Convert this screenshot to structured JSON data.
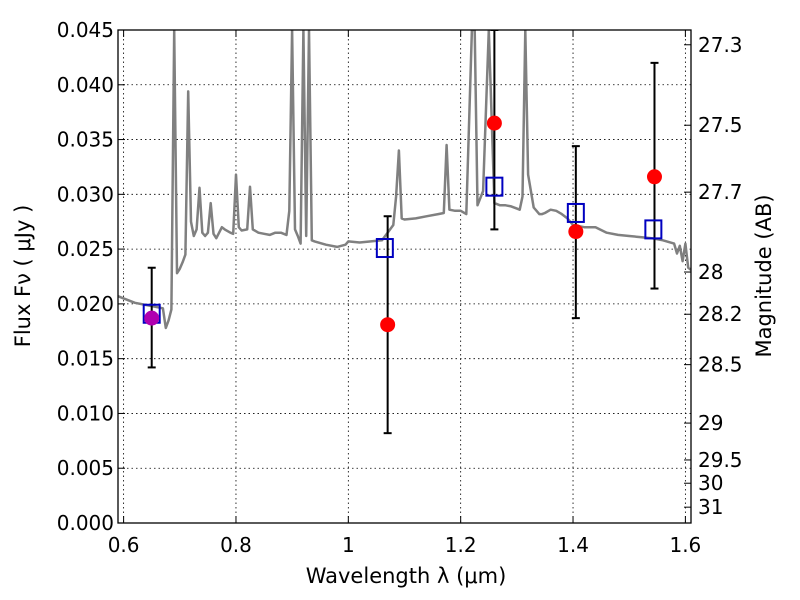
{
  "chart_data": {
    "type": "scatter",
    "xlabel": "Wavelength  λ (μm)",
    "ylabel": "Flux  Fν  ( μJy )",
    "y2label": "Magnitude (AB)",
    "xlim": [
      0.59,
      1.61
    ],
    "ylim": [
      0.0,
      0.045
    ],
    "grid": true,
    "x_ticks": [
      0.6,
      0.8,
      1.0,
      1.2,
      1.4,
      1.6
    ],
    "x_tick_labels": [
      "0.6",
      "0.8",
      "1",
      "1.2",
      "1.4",
      "1.6"
    ],
    "y_ticks": [
      0.0,
      0.005,
      0.01,
      0.015,
      0.02,
      0.025,
      0.03,
      0.035,
      0.04,
      0.045
    ],
    "y_tick_labels": [
      "0.000",
      "0.005",
      "0.010",
      "0.015",
      "0.020",
      "0.025",
      "0.030",
      "0.035",
      "0.040",
      "0.045"
    ],
    "y2_ticks": [
      27.3,
      27.5,
      27.7,
      28.0,
      28.2,
      28.5,
      29.0,
      29.5,
      30.0,
      31.0
    ],
    "y2_tick_labels": [
      "27.3",
      "27.5",
      "27.7",
      "28",
      "28.2",
      "28.5",
      "29",
      "29.5",
      "30",
      "31"
    ],
    "series": [
      {
        "kind": "observed",
        "marker": "circle",
        "color": "#ff0000",
        "points": [
          {
            "x": 0.65,
            "y": 0.0187,
            "err_low": 0.0142,
            "err_high": 0.0233
          },
          {
            "x": 1.07,
            "y": 0.0181,
            "err_low": 0.0082,
            "err_high": 0.028
          },
          {
            "x": 1.26,
            "y": 0.0365,
            "err_low": 0.0268,
            "err_high": 0.045
          },
          {
            "x": 1.405,
            "y": 0.0266,
            "err_low": 0.0187,
            "err_high": 0.0344
          },
          {
            "x": 1.545,
            "y": 0.0316,
            "err_low": 0.0214,
            "err_high": 0.042
          }
        ]
      },
      {
        "kind": "model",
        "marker": "square-open",
        "color": "#0000c0",
        "points": [
          {
            "x": 0.65,
            "y": 0.0191
          },
          {
            "x": 1.065,
            "y": 0.0251
          },
          {
            "x": 1.26,
            "y": 0.0307
          },
          {
            "x": 1.405,
            "y": 0.0283
          },
          {
            "x": 1.543,
            "y": 0.0268
          }
        ]
      },
      {
        "kind": "spectrum",
        "color": "#808080",
        "x": [
          0.59,
          0.6,
          0.62,
          0.64,
          0.66,
          0.67,
          0.675,
          0.68,
          0.685,
          0.69,
          0.695,
          0.7,
          0.705,
          0.71,
          0.715,
          0.72,
          0.725,
          0.73,
          0.735,
          0.74,
          0.745,
          0.75,
          0.755,
          0.76,
          0.765,
          0.77,
          0.775,
          0.78,
          0.79,
          0.795,
          0.8,
          0.805,
          0.81,
          0.82,
          0.825,
          0.83,
          0.84,
          0.85,
          0.86,
          0.87,
          0.88,
          0.89,
          0.895,
          0.9,
          0.905,
          0.91,
          0.915,
          0.92,
          0.925,
          0.93,
          0.935,
          0.94,
          0.96,
          0.98,
          0.995,
          1.0,
          1.02,
          1.04,
          1.06,
          1.07,
          1.08,
          1.085,
          1.09,
          1.095,
          1.1,
          1.12,
          1.14,
          1.16,
          1.17,
          1.175,
          1.18,
          1.19,
          1.2,
          1.21,
          1.22,
          1.225,
          1.23,
          1.24,
          1.25,
          1.26,
          1.27,
          1.28,
          1.29,
          1.3,
          1.305,
          1.31,
          1.315,
          1.32,
          1.33,
          1.34,
          1.345,
          1.35,
          1.36,
          1.37,
          1.38,
          1.39,
          1.4,
          1.42,
          1.44,
          1.46,
          1.48,
          1.5,
          1.52,
          1.54,
          1.56,
          1.58,
          1.585,
          1.59,
          1.595,
          1.6,
          1.605,
          1.61
        ],
        "y": [
          0.0207,
          0.0205,
          0.0201,
          0.0199,
          0.0197,
          0.0196,
          0.0178,
          0.0185,
          0.0195,
          0.045,
          0.0228,
          0.0232,
          0.0238,
          0.0245,
          0.0394,
          0.0275,
          0.0262,
          0.0268,
          0.0306,
          0.0265,
          0.0262,
          0.0265,
          0.0292,
          0.0264,
          0.026,
          0.0265,
          0.027,
          0.0268,
          0.0265,
          0.0264,
          0.0318,
          0.027,
          0.0267,
          0.0268,
          0.0307,
          0.0268,
          0.0265,
          0.0264,
          0.0263,
          0.0265,
          0.0265,
          0.0263,
          0.0285,
          0.045,
          0.0268,
          0.0262,
          0.0255,
          0.045,
          0.0262,
          0.045,
          0.0258,
          0.0257,
          0.0254,
          0.0252,
          0.0254,
          0.0257,
          0.0256,
          0.0257,
          0.0258,
          0.0265,
          0.0272,
          0.0298,
          0.034,
          0.0278,
          0.0277,
          0.0278,
          0.028,
          0.0282,
          0.0283,
          0.0345,
          0.0286,
          0.0285,
          0.0285,
          0.0282,
          0.045,
          0.045,
          0.029,
          0.0303,
          0.045,
          0.0292,
          0.029,
          0.029,
          0.0289,
          0.0287,
          0.0286,
          0.0298,
          0.045,
          0.0318,
          0.0288,
          0.0282,
          0.0282,
          0.0283,
          0.0286,
          0.0285,
          0.0282,
          0.0278,
          0.0272,
          0.027,
          0.027,
          0.0265,
          0.0263,
          0.0262,
          0.0261,
          0.026,
          0.0258,
          0.0255,
          0.0246,
          0.0253,
          0.0239,
          0.0255,
          0.0233,
          0.0231
        ]
      }
    ]
  }
}
